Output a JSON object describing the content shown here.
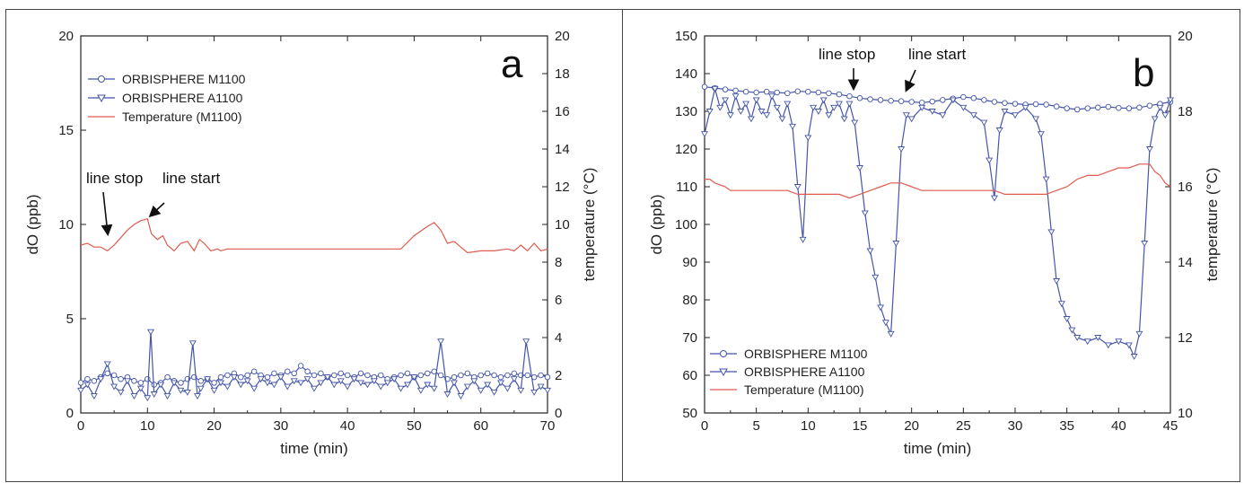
{
  "chart_data": [
    {
      "type": "line",
      "panel_label": "a",
      "xlabel": "time (min)",
      "ylabel": "dO (ppb)",
      "y2label": "temperature (°C)",
      "xlim": [
        0,
        70
      ],
      "ylim": [
        0,
        20
      ],
      "y2lim": [
        0,
        20
      ],
      "xticks": [
        0,
        10,
        20,
        30,
        40,
        50,
        60,
        70
      ],
      "yticks": [
        0,
        5,
        10,
        15,
        20
      ],
      "y2ticks": [
        0,
        2,
        4,
        6,
        8,
        10,
        12,
        14,
        16,
        18,
        20
      ],
      "legend_position": "top-left",
      "annotations": [
        {
          "text": "line stop",
          "x": 4,
          "y": 9.4
        },
        {
          "text": "line start",
          "x": 11,
          "y": 10.3
        }
      ],
      "series": [
        {
          "name": "ORBISPHERE M1100",
          "axis": "left",
          "color": "#4455aa",
          "marker": "circle",
          "x": [
            0,
            1,
            2,
            3,
            4,
            5,
            6,
            7,
            8,
            9,
            10,
            11,
            12,
            13,
            14,
            15,
            16,
            17,
            18,
            19,
            20,
            21,
            22,
            23,
            24,
            25,
            26,
            27,
            28,
            29,
            30,
            31,
            32,
            33,
            34,
            35,
            36,
            37,
            38,
            39,
            40,
            41,
            42,
            43,
            44,
            45,
            46,
            47,
            48,
            49,
            50,
            51,
            52,
            53,
            54,
            55,
            56,
            57,
            58,
            59,
            60,
            61,
            62,
            63,
            64,
            65,
            66,
            67,
            68,
            69,
            70
          ],
          "y": [
            1.6,
            1.8,
            1.7,
            1.9,
            2.1,
            2.0,
            1.8,
            1.9,
            1.7,
            1.6,
            1.8,
            1.5,
            1.6,
            1.9,
            1.7,
            1.6,
            1.8,
            1.9,
            1.7,
            1.8,
            1.6,
            1.9,
            2.0,
            2.1,
            1.9,
            2.0,
            2.2,
            2.0,
            1.9,
            2.1,
            2.0,
            2.2,
            2.1,
            2.5,
            2.2,
            2.0,
            2.1,
            1.9,
            2.0,
            2.1,
            2.0,
            1.9,
            2.1,
            2.0,
            1.9,
            2.0,
            1.8,
            1.9,
            2.0,
            2.1,
            1.9,
            2.0,
            2.1,
            2.2,
            2.0,
            1.8,
            1.9,
            2.0,
            2.1,
            1.9,
            2.0,
            2.1,
            2.0,
            1.9,
            2.0,
            2.1,
            2.0,
            2.0,
            1.9,
            2.0,
            1.9
          ]
        },
        {
          "name": "ORBISPHERE A1100",
          "axis": "left",
          "color": "#4455aa",
          "marker": "triangle-down",
          "x": [
            0,
            1,
            2,
            3,
            4,
            5,
            6,
            7,
            8,
            9,
            10,
            10.5,
            11,
            12,
            13,
            14,
            15,
            16,
            16.8,
            17.5,
            18,
            19,
            20,
            21,
            22,
            23,
            24,
            25,
            26,
            27,
            28,
            29,
            30,
            31,
            32,
            33,
            34,
            35,
            36,
            37,
            38,
            39,
            40,
            41,
            42,
            43,
            44,
            45,
            46,
            47,
            48,
            49,
            50,
            51,
            52,
            53,
            54,
            55,
            56,
            57,
            58,
            59,
            60,
            61,
            62,
            63,
            64,
            65,
            66,
            66.8,
            68,
            69,
            70
          ],
          "y": [
            1.2,
            1.5,
            0.9,
            1.8,
            2.6,
            1.4,
            1.1,
            1.7,
            0.9,
            1.3,
            0.8,
            4.3,
            1.0,
            1.5,
            0.9,
            1.6,
            1.2,
            1.1,
            3.7,
            0.9,
            1.3,
            1.8,
            1.2,
            1.6,
            1.4,
            1.9,
            1.5,
            1.7,
            1.3,
            1.8,
            1.6,
            1.5,
            1.9,
            1.4,
            1.7,
            1.6,
            1.8,
            1.3,
            1.6,
            1.9,
            1.5,
            1.7,
            1.4,
            1.8,
            1.6,
            1.5,
            1.7,
            1.4,
            1.6,
            1.8,
            1.3,
            1.5,
            1.9,
            1.2,
            1.5,
            1.3,
            3.8,
            1.0,
            1.6,
            0.9,
            1.4,
            1.7,
            1.2,
            1.5,
            1.1,
            1.6,
            1.3,
            1.8,
            1.2,
            3.8,
            1.1,
            1.4,
            1.2
          ]
        },
        {
          "name": "Temperature (M1100)",
          "axis": "right",
          "color": "#e05a50",
          "marker": "none",
          "x": [
            0,
            1,
            2,
            3,
            4,
            5,
            6,
            7,
            8,
            9,
            10,
            10.6,
            11.5,
            12.3,
            13,
            14,
            15,
            16,
            17,
            17.8,
            18.5,
            19.5,
            20.5,
            21,
            22,
            25,
            30,
            35,
            40,
            45,
            48,
            50,
            52,
            53,
            54,
            55,
            56,
            57,
            58,
            60,
            62,
            64,
            65,
            66,
            67,
            68,
            69,
            70
          ],
          "y": [
            8.9,
            9.0,
            8.8,
            8.8,
            8.6,
            8.9,
            9.3,
            9.7,
            10.0,
            10.2,
            10.3,
            9.5,
            9.2,
            9.4,
            8.9,
            8.6,
            9.0,
            9.1,
            8.6,
            9.2,
            9.0,
            8.6,
            8.7,
            8.6,
            8.7,
            8.7,
            8.7,
            8.7,
            8.7,
            8.7,
            8.7,
            9.4,
            9.9,
            10.1,
            9.7,
            9.0,
            9.1,
            8.8,
            8.5,
            8.6,
            8.6,
            8.7,
            8.6,
            8.9,
            8.6,
            9.0,
            8.6,
            8.7
          ]
        }
      ]
    },
    {
      "type": "line",
      "panel_label": "b",
      "xlabel": "time (min)",
      "ylabel": "dO (ppb)",
      "y2label": "temperature (°C)",
      "xlim": [
        0,
        45
      ],
      "ylim": [
        50,
        150
      ],
      "y2lim": [
        10,
        20
      ],
      "xticks": [
        0,
        5,
        10,
        15,
        20,
        25,
        30,
        35,
        40,
        45
      ],
      "yticks": [
        50,
        60,
        70,
        80,
        90,
        100,
        110,
        120,
        130,
        140,
        150
      ],
      "y2ticks": [
        10,
        12,
        14,
        16,
        18,
        20
      ],
      "legend_position": "bottom-left",
      "annotations": [
        {
          "text": "line stop",
          "x": 14,
          "y": 133
        },
        {
          "text": "line start",
          "x": 19,
          "y": 132
        }
      ],
      "series": [
        {
          "name": "ORBISPHERE M1100",
          "axis": "left",
          "color": "#4455aa",
          "marker": "circle",
          "x": [
            0,
            1,
            2,
            3,
            4,
            5,
            6,
            7,
            8,
            9,
            10,
            11,
            12,
            13,
            14,
            15,
            16,
            17,
            18,
            19,
            20,
            21,
            22,
            23,
            24,
            25,
            26,
            27,
            28,
            29,
            30,
            31,
            32,
            33,
            34,
            35,
            36,
            37,
            38,
            39,
            40,
            41,
            42,
            43,
            44,
            45
          ],
          "y": [
            136.5,
            136.2,
            135.8,
            135.5,
            135.2,
            135.0,
            135.2,
            135.0,
            134.8,
            135.3,
            135.2,
            135.0,
            134.8,
            134.5,
            134.0,
            133.5,
            133.2,
            133.0,
            132.8,
            132.7,
            132.5,
            132.3,
            132.6,
            133.0,
            133.4,
            133.8,
            133.5,
            133.0,
            132.5,
            132.2,
            132.0,
            131.8,
            131.9,
            131.8,
            131.3,
            130.8,
            130.5,
            130.8,
            131.0,
            131.2,
            130.9,
            130.8,
            131.0,
            131.5,
            132.0,
            132.5
          ]
        },
        {
          "name": "ORBISPHERE A1100",
          "axis": "left",
          "color": "#4455aa",
          "marker": "triangle-down",
          "x": [
            0,
            0.5,
            1,
            1.5,
            2,
            2.5,
            3,
            3.5,
            4,
            4.5,
            5,
            5.5,
            6,
            6.5,
            7,
            7.5,
            8,
            8.5,
            9,
            9.5,
            10,
            10.5,
            11,
            11.5,
            12,
            12.5,
            13,
            13.5,
            14,
            14.5,
            15,
            15.5,
            16,
            16.5,
            17,
            17.5,
            18,
            18.5,
            19,
            19.5,
            20,
            21,
            22,
            23,
            24,
            25,
            26,
            27,
            27.5,
            28,
            28.5,
            29,
            30,
            31,
            32,
            32.5,
            33,
            33.5,
            34,
            34.5,
            35,
            35.5,
            36,
            37,
            38,
            39,
            40,
            41,
            41.5,
            42,
            42.5,
            43,
            43.5,
            44,
            44.5,
            45
          ],
          "y": [
            124,
            130,
            136,
            131,
            133,
            129,
            134,
            130,
            132,
            128,
            133,
            130,
            129,
            134,
            131,
            128,
            132,
            126,
            110,
            96,
            123,
            131,
            130,
            133,
            129,
            131,
            132,
            128,
            132,
            127,
            115,
            103,
            93,
            86,
            78,
            74,
            71,
            95,
            120,
            129,
            128,
            131,
            130,
            129,
            133,
            131,
            129,
            127,
            117,
            107,
            125,
            130,
            129,
            131,
            128,
            124,
            112,
            98,
            85,
            79,
            75,
            72,
            70,
            69,
            70,
            68,
            69,
            68,
            65,
            71,
            95,
            120,
            128,
            131,
            129,
            133
          ]
        },
        {
          "name": "Temperature (M1100)",
          "axis": "right",
          "color": "#e05a50",
          "marker": "none",
          "x": [
            0,
            0.5,
            1,
            2,
            2.5,
            3,
            5,
            8,
            9,
            12,
            13,
            14,
            15,
            16,
            17,
            18,
            19,
            20,
            21,
            22,
            24,
            26,
            27,
            28,
            29,
            30,
            32,
            33,
            34,
            35,
            36,
            37,
            38,
            39,
            40,
            41,
            42,
            42.5,
            43,
            43.5,
            44,
            44.5,
            45
          ],
          "y": [
            16.2,
            16.2,
            16.1,
            16.0,
            15.9,
            15.9,
            15.9,
            15.9,
            15.8,
            15.8,
            15.8,
            15.7,
            15.8,
            15.9,
            16.0,
            16.1,
            16.1,
            16.0,
            15.9,
            15.9,
            15.9,
            15.9,
            15.9,
            15.9,
            15.8,
            15.8,
            15.8,
            15.8,
            15.9,
            16.0,
            16.2,
            16.3,
            16.3,
            16.4,
            16.5,
            16.5,
            16.6,
            16.6,
            16.6,
            16.4,
            16.3,
            16.1,
            16.0
          ]
        }
      ]
    }
  ]
}
